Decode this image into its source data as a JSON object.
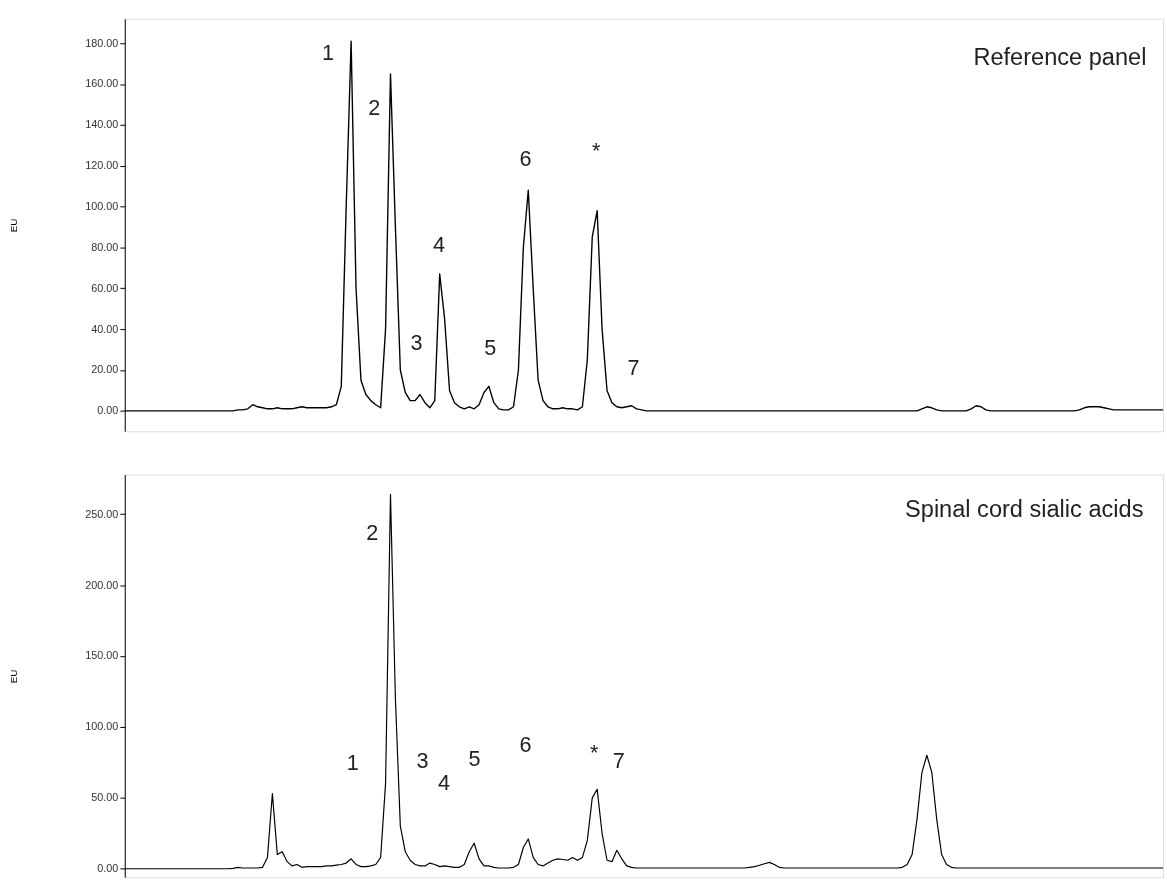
{
  "chart_data": [
    {
      "type": "line",
      "title": "Reference  panel",
      "ylabel": "EU",
      "tick_labels": "y",
      "grid": false,
      "categories": [
        null,
        null,
        null,
        null,
        null,
        null,
        null,
        null,
        null,
        null,
        null,
        null,
        null,
        null,
        null,
        null,
        null,
        null,
        null,
        null,
        null,
        null,
        null,
        null,
        null,
        null,
        null,
        null,
        null,
        null,
        null,
        null,
        null,
        null,
        null,
        null,
        null,
        null,
        null,
        null,
        null,
        null,
        null,
        null,
        null,
        null,
        null,
        null,
        null,
        null,
        null,
        null,
        null,
        null,
        null,
        null,
        null,
        null,
        null,
        null,
        null,
        null,
        null,
        null,
        null,
        null,
        null,
        null,
        null,
        null,
        null,
        null,
        null,
        null,
        null,
        null,
        null,
        null,
        null,
        null,
        null,
        null,
        null,
        null,
        null,
        null,
        null,
        null,
        null,
        null,
        null,
        null,
        null,
        null,
        null,
        null,
        null,
        null,
        null,
        null,
        null,
        null,
        null,
        null,
        null,
        null,
        null,
        null,
        null,
        null,
        null,
        null,
        null,
        null,
        null,
        null,
        null,
        null,
        null,
        null,
        null,
        null,
        null,
        null,
        null,
        null,
        null,
        null,
        null,
        null,
        null,
        null,
        null,
        null,
        null,
        null,
        null,
        null,
        null,
        null,
        null,
        null,
        null,
        null,
        null,
        null,
        null,
        null,
        null,
        null,
        null,
        null,
        null,
        null,
        null,
        null,
        null,
        null,
        null,
        null,
        null,
        null,
        null,
        null,
        null,
        null,
        null,
        null,
        null,
        null,
        null,
        null,
        null,
        null,
        null,
        null,
        null,
        null,
        null,
        null,
        null,
        null,
        null,
        null,
        null,
        null,
        null,
        null,
        null,
        null,
        null,
        null,
        null,
        null,
        null,
        null,
        null,
        null,
        null,
        null,
        null,
        null,
        null,
        null,
        null,
        null,
        null,
        null,
        null,
        null,
        null,
        null
      ],
      "series": [
        {
          "color": "#000000",
          "values": [
            0,
            0,
            0,
            0,
            0,
            0,
            0,
            0,
            0,
            0,
            0,
            0,
            0,
            0,
            0,
            0,
            0,
            0,
            0,
            0,
            0,
            0,
            0,
            0.5,
            0.5,
            1,
            3,
            2,
            1.5,
            1,
            1,
            1.5,
            1,
            1,
            1,
            1.5,
            2,
            1.5,
            1.5,
            1.5,
            1.5,
            1.5,
            2,
            3,
            12,
            100,
            181,
            60,
            15,
            8,
            5,
            3,
            1.5,
            40,
            165,
            90,
            20,
            9,
            5,
            5,
            8,
            4,
            1.5,
            5,
            67,
            45,
            10,
            4,
            2,
            1,
            2,
            1,
            3,
            9,
            12,
            4,
            1,
            0.5,
            0.5,
            2,
            20,
            80,
            108,
            60,
            15,
            5,
            2,
            1,
            1,
            1.5,
            1,
            1,
            0.5,
            2,
            25,
            85,
            98,
            40,
            10,
            4,
            2,
            1.5,
            2,
            2.5,
            1,
            0.5,
            0,
            0,
            0,
            0,
            0,
            0,
            0,
            0,
            0,
            0,
            0,
            0,
            0,
            0,
            0,
            0,
            0,
            0,
            0,
            0,
            0,
            0,
            0,
            0,
            0,
            0,
            0,
            0,
            0,
            0,
            0,
            0,
            0,
            0,
            0,
            0,
            0,
            0,
            0,
            0,
            0,
            0,
            0,
            0,
            0,
            0,
            0,
            0,
            0,
            0,
            0,
            0,
            0,
            0,
            0,
            0,
            1,
            2,
            1.5,
            0.5,
            0,
            0,
            0,
            0,
            0,
            0,
            1,
            2.5,
            2,
            0.5,
            0,
            0,
            0,
            0,
            0,
            0,
            0,
            0,
            0,
            0,
            0,
            0,
            0,
            0,
            0,
            0,
            0,
            0,
            0.5,
            1.5,
            2,
            2,
            2,
            1.5,
            1,
            0.5,
            0.5,
            0.5,
            0.5,
            0.5,
            0.5,
            0.5,
            0.5,
            0.5,
            0.5,
            0.5
          ]
        }
      ],
      "ylim": [
        -10,
        192
      ],
      "yticks": [
        {
          "value": 0,
          "label": "0.00"
        },
        {
          "value": 20,
          "label": "20.00"
        },
        {
          "value": 40,
          "label": "40.00"
        },
        {
          "value": 60,
          "label": "60.00"
        },
        {
          "value": 80,
          "label": "80.00"
        },
        {
          "value": 100,
          "label": "100.00"
        },
        {
          "value": 120,
          "label": "120.00"
        },
        {
          "value": 140,
          "label": "140.00"
        },
        {
          "value": 160,
          "label": "160.00"
        },
        {
          "value": 180,
          "label": "180.00"
        }
      ],
      "annotations": [
        "1",
        "2",
        "3",
        "4",
        "5",
        "6",
        "*",
        "7"
      ]
    },
    {
      "type": "line",
      "title": "Spinal cord sialic acids",
      "ylabel": "EU",
      "tick_labels": "y",
      "grid": false,
      "categories": [
        null,
        null,
        null,
        null,
        null,
        null,
        null,
        null,
        null,
        null,
        null,
        null,
        null,
        null,
        null,
        null,
        null,
        null,
        null,
        null,
        null,
        null,
        null,
        null,
        null,
        null,
        null,
        null,
        null,
        null,
        null,
        null,
        null,
        null,
        null,
        null,
        null,
        null,
        null,
        null,
        null,
        null,
        null,
        null,
        null,
        null,
        null,
        null,
        null,
        null,
        null,
        null,
        null,
        null,
        null,
        null,
        null,
        null,
        null,
        null,
        null,
        null,
        null,
        null,
        null,
        null,
        null,
        null,
        null,
        null,
        null,
        null,
        null,
        null,
        null,
        null,
        null,
        null,
        null,
        null,
        null,
        null,
        null,
        null,
        null,
        null,
        null,
        null,
        null,
        null,
        null,
        null,
        null,
        null,
        null,
        null,
        null,
        null,
        null,
        null,
        null,
        null,
        null,
        null,
        null,
        null,
        null,
        null,
        null,
        null,
        null,
        null,
        null,
        null,
        null,
        null,
        null,
        null,
        null,
        null,
        null,
        null,
        null,
        null,
        null,
        null,
        null,
        null,
        null,
        null,
        null,
        null,
        null,
        null,
        null,
        null,
        null,
        null,
        null,
        null,
        null,
        null,
        null,
        null,
        null,
        null,
        null,
        null,
        null,
        null,
        null,
        null,
        null,
        null,
        null,
        null,
        null,
        null,
        null,
        null,
        null,
        null,
        null,
        null,
        null,
        null,
        null,
        null,
        null,
        null,
        null,
        null,
        null,
        null,
        null,
        null,
        null,
        null,
        null,
        null,
        null,
        null,
        null,
        null,
        null,
        null,
        null,
        null,
        null,
        null,
        null,
        null,
        null,
        null,
        null,
        null,
        null,
        null,
        null,
        null,
        null,
        null,
        null,
        null,
        null,
        null,
        null,
        null,
        null,
        null,
        null,
        null
      ],
      "series": [
        {
          "color": "#000000",
          "values": [
            0,
            0,
            0,
            0,
            0,
            0,
            0,
            0,
            0,
            0,
            0,
            0,
            0,
            0,
            0,
            0,
            0,
            0,
            0,
            0,
            0,
            0,
            0.3,
            1,
            0.5,
            0.5,
            0.5,
            0.5,
            1,
            8,
            53,
            10,
            12,
            5,
            2,
            3,
            1,
            1.5,
            1.5,
            1.5,
            1.5,
            2,
            2,
            2.5,
            3,
            4,
            7,
            3,
            1.5,
            1.5,
            2,
            3,
            8,
            60,
            264,
            120,
            30,
            12,
            6,
            3,
            2,
            2,
            4,
            3,
            1.5,
            2,
            1.5,
            1,
            1,
            3,
            12,
            18,
            7,
            2,
            2,
            1,
            0.5,
            0.5,
            0.5,
            1,
            3,
            15,
            21,
            8,
            3,
            2,
            4,
            6,
            7,
            6.5,
            6,
            8,
            6,
            8,
            20,
            50,
            56,
            25,
            6,
            5,
            13,
            7,
            2,
            1,
            0.5,
            0.5,
            0.5,
            0.5,
            0.5,
            0.5,
            0.5,
            0.5,
            0.5,
            0.5,
            0.5,
            0.5,
            0.5,
            0.5,
            0.5,
            0.5,
            0.5,
            0.5,
            0.5,
            0.5,
            0.5,
            0.5,
            0.5,
            1,
            1.5,
            2.5,
            3.5,
            4.5,
            3,
            1,
            0.5,
            0.5,
            0.5,
            0.5,
            0.5,
            0.5,
            0.5,
            0.5,
            0.5,
            0.5,
            0.5,
            0.5,
            0.5,
            0.5,
            0.5,
            0.5,
            0.5,
            0.5,
            0.5,
            0.5,
            0.5,
            0.5,
            0.5,
            0.5,
            1,
            3,
            10,
            35,
            68,
            80,
            68,
            35,
            10,
            3,
            1,
            0.5,
            0.5,
            0.5,
            0.5,
            0.5,
            0.5,
            0.5,
            0.5,
            0.5,
            0.5,
            0.5,
            0.5,
            0.5,
            0.5,
            0.5,
            0.5,
            0.5,
            0.5,
            0.5,
            0.5,
            0.5,
            0.5,
            0.5,
            0.5,
            0.5,
            0.5,
            0.5,
            0.5,
            0.5,
            0.5,
            0.5,
            0.5,
            0.5,
            0.5,
            0.5,
            0.5,
            0.5,
            0.5,
            0.5,
            0.5,
            0.5,
            0.5,
            0.5
          ]
        }
      ],
      "ylim": [
        -6,
        278
      ],
      "yticks": [
        {
          "value": 0,
          "label": "0.00"
        },
        {
          "value": 50,
          "label": "50.00"
        },
        {
          "value": 100,
          "label": "100.00"
        },
        {
          "value": 150,
          "label": "150.00"
        },
        {
          "value": 200,
          "label": "200.00"
        },
        {
          "value": 250,
          "label": "250.00"
        }
      ],
      "annotations": [
        "1",
        "2",
        "3",
        "4",
        "5",
        "6",
        "*",
        "7"
      ]
    }
  ]
}
